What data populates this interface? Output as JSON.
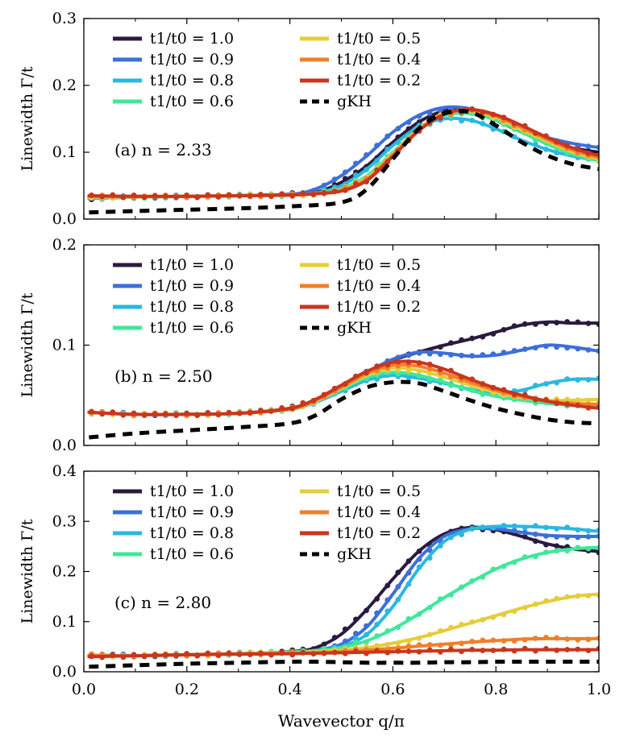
{
  "chart_data": [
    {
      "type": "line",
      "panel_label": "(a) n = 2.33",
      "ylabel": "Linewidth Γ/t",
      "xlabel": "",
      "xlim": [
        0,
        1
      ],
      "ylim": [
        0,
        0.3
      ],
      "xticks": [
        0.0,
        0.2,
        0.4,
        0.6,
        0.8,
        1.0
      ],
      "yticks": [
        0.0,
        0.1,
        0.2,
        0.3
      ],
      "show_xtick_labels": false,
      "series": [
        {
          "name": "t1/t0 = 1.0",
          "color": "#2b1a3f",
          "x": [
            0.01,
            0.1,
            0.2,
            0.3,
            0.4,
            0.45,
            0.5,
            0.55,
            0.6,
            0.65,
            0.7,
            0.75,
            0.8,
            0.85,
            0.9,
            0.95,
            1.0
          ],
          "y": [
            0.031,
            0.033,
            0.034,
            0.035,
            0.037,
            0.04,
            0.055,
            0.08,
            0.115,
            0.145,
            0.162,
            0.163,
            0.148,
            0.13,
            0.115,
            0.106,
            0.1
          ]
        },
        {
          "name": "t1/t0 = 0.9",
          "color": "#3d6fd8",
          "x": [
            0.01,
            0.1,
            0.2,
            0.3,
            0.4,
            0.45,
            0.5,
            0.55,
            0.6,
            0.65,
            0.7,
            0.75,
            0.8,
            0.85,
            0.9,
            0.95,
            1.0
          ],
          "y": [
            0.031,
            0.033,
            0.034,
            0.035,
            0.037,
            0.045,
            0.065,
            0.095,
            0.13,
            0.155,
            0.167,
            0.165,
            0.152,
            0.135,
            0.122,
            0.113,
            0.107
          ]
        },
        {
          "name": "t1/t0 = 0.8",
          "color": "#2ab8e0",
          "x": [
            0.01,
            0.1,
            0.2,
            0.3,
            0.4,
            0.45,
            0.5,
            0.55,
            0.6,
            0.65,
            0.7,
            0.75,
            0.8,
            0.85,
            0.9,
            0.95,
            1.0
          ],
          "y": [
            0.031,
            0.033,
            0.034,
            0.035,
            0.036,
            0.039,
            0.05,
            0.075,
            0.11,
            0.138,
            0.15,
            0.148,
            0.135,
            0.118,
            0.104,
            0.094,
            0.088
          ]
        },
        {
          "name": "t1/t0 = 0.6",
          "color": "#3ee89a",
          "x": [
            0.01,
            0.1,
            0.2,
            0.3,
            0.4,
            0.45,
            0.5,
            0.55,
            0.6,
            0.65,
            0.7,
            0.75,
            0.8,
            0.85,
            0.9,
            0.95,
            1.0
          ],
          "y": [
            0.033,
            0.033,
            0.034,
            0.035,
            0.036,
            0.038,
            0.045,
            0.065,
            0.1,
            0.135,
            0.155,
            0.158,
            0.148,
            0.13,
            0.112,
            0.097,
            0.087
          ]
        },
        {
          "name": "t1/t0 = 0.5",
          "color": "#e6cc3a",
          "x": [
            0.01,
            0.1,
            0.2,
            0.3,
            0.4,
            0.45,
            0.5,
            0.55,
            0.6,
            0.65,
            0.7,
            0.75,
            0.8,
            0.85,
            0.9,
            0.95,
            1.0
          ],
          "y": [
            0.033,
            0.033,
            0.034,
            0.035,
            0.036,
            0.038,
            0.044,
            0.062,
            0.098,
            0.135,
            0.158,
            0.162,
            0.152,
            0.134,
            0.116,
            0.1,
            0.09
          ]
        },
        {
          "name": "t1/t0 = 0.4",
          "color": "#f07f2a",
          "x": [
            0.01,
            0.1,
            0.2,
            0.3,
            0.4,
            0.45,
            0.5,
            0.55,
            0.6,
            0.65,
            0.7,
            0.75,
            0.8,
            0.85,
            0.9,
            0.95,
            1.0
          ],
          "y": [
            0.034,
            0.034,
            0.034,
            0.035,
            0.036,
            0.038,
            0.043,
            0.06,
            0.096,
            0.133,
            0.157,
            0.163,
            0.154,
            0.137,
            0.119,
            0.103,
            0.092
          ]
        },
        {
          "name": "t1/t0 = 0.2",
          "color": "#c9361d",
          "x": [
            0.01,
            0.1,
            0.2,
            0.3,
            0.4,
            0.45,
            0.5,
            0.55,
            0.6,
            0.65,
            0.7,
            0.75,
            0.8,
            0.85,
            0.9,
            0.95,
            1.0
          ],
          "y": [
            0.035,
            0.034,
            0.034,
            0.035,
            0.036,
            0.038,
            0.042,
            0.058,
            0.094,
            0.132,
            0.157,
            0.164,
            0.156,
            0.14,
            0.122,
            0.106,
            0.095
          ]
        },
        {
          "name": "gKH",
          "color": "#000000",
          "dashed": true,
          "x": [
            0.01,
            0.1,
            0.2,
            0.3,
            0.4,
            0.5,
            0.55,
            0.6,
            0.65,
            0.7,
            0.75,
            0.8,
            0.85,
            0.9,
            0.95,
            1.0
          ],
          "y": [
            0.01,
            0.012,
            0.014,
            0.016,
            0.019,
            0.025,
            0.045,
            0.09,
            0.135,
            0.158,
            0.16,
            0.14,
            0.115,
            0.095,
            0.082,
            0.075
          ]
        }
      ]
    },
    {
      "type": "line",
      "panel_label": "(b) n = 2.50",
      "ylabel": "Linewidth Γ/t",
      "xlabel": "",
      "xlim": [
        0,
        1
      ],
      "ylim": [
        0,
        0.2
      ],
      "xticks": [
        0.0,
        0.2,
        0.4,
        0.6,
        0.8,
        1.0
      ],
      "yticks": [
        0.0,
        0.1,
        0.2
      ],
      "show_xtick_labels": false,
      "series": [
        {
          "name": "t1/t0 = 1.0",
          "color": "#2b1a3f",
          "x": [
            0.01,
            0.1,
            0.2,
            0.3,
            0.4,
            0.45,
            0.5,
            0.55,
            0.6,
            0.65,
            0.7,
            0.75,
            0.8,
            0.85,
            0.9,
            0.95,
            1.0
          ],
          "y": [
            0.033,
            0.031,
            0.031,
            0.032,
            0.037,
            0.045,
            0.058,
            0.073,
            0.085,
            0.093,
            0.1,
            0.106,
            0.113,
            0.12,
            0.123,
            0.122,
            0.122
          ]
        },
        {
          "name": "t1/t0 = 0.9",
          "color": "#3d6fd8",
          "x": [
            0.01,
            0.1,
            0.2,
            0.3,
            0.4,
            0.45,
            0.5,
            0.55,
            0.6,
            0.65,
            0.7,
            0.75,
            0.8,
            0.85,
            0.9,
            0.95,
            1.0
          ],
          "y": [
            0.033,
            0.031,
            0.031,
            0.032,
            0.037,
            0.045,
            0.058,
            0.073,
            0.086,
            0.093,
            0.092,
            0.089,
            0.09,
            0.095,
            0.1,
            0.098,
            0.094
          ]
        },
        {
          "name": "t1/t0 = 0.8",
          "color": "#2ab8e0",
          "x": [
            0.01,
            0.1,
            0.2,
            0.3,
            0.4,
            0.45,
            0.5,
            0.55,
            0.6,
            0.65,
            0.7,
            0.75,
            0.8,
            0.85,
            0.9,
            0.95,
            1.0
          ],
          "y": [
            0.033,
            0.031,
            0.031,
            0.032,
            0.036,
            0.043,
            0.054,
            0.065,
            0.07,
            0.067,
            0.062,
            0.056,
            0.052,
            0.055,
            0.062,
            0.066,
            0.066
          ]
        },
        {
          "name": "t1/t0 = 0.6",
          "color": "#3ee89a",
          "x": [
            0.01,
            0.1,
            0.2,
            0.3,
            0.4,
            0.45,
            0.5,
            0.55,
            0.6,
            0.65,
            0.7,
            0.75,
            0.8,
            0.85,
            0.9,
            0.95,
            1.0
          ],
          "y": [
            0.033,
            0.031,
            0.031,
            0.032,
            0.036,
            0.044,
            0.056,
            0.068,
            0.073,
            0.07,
            0.063,
            0.055,
            0.049,
            0.045,
            0.042,
            0.04,
            0.04
          ]
        },
        {
          "name": "t1/t0 = 0.5",
          "color": "#e6cc3a",
          "x": [
            0.01,
            0.1,
            0.2,
            0.3,
            0.4,
            0.45,
            0.5,
            0.55,
            0.6,
            0.65,
            0.7,
            0.75,
            0.8,
            0.85,
            0.9,
            0.95,
            1.0
          ],
          "y": [
            0.033,
            0.031,
            0.031,
            0.032,
            0.036,
            0.044,
            0.057,
            0.07,
            0.077,
            0.075,
            0.068,
            0.06,
            0.053,
            0.048,
            0.045,
            0.045,
            0.046
          ]
        },
        {
          "name": "t1/t0 = 0.4",
          "color": "#f07f2a",
          "x": [
            0.01,
            0.1,
            0.2,
            0.3,
            0.4,
            0.45,
            0.5,
            0.55,
            0.6,
            0.65,
            0.7,
            0.75,
            0.8,
            0.85,
            0.9,
            0.95,
            1.0
          ],
          "y": [
            0.033,
            0.031,
            0.031,
            0.032,
            0.036,
            0.045,
            0.058,
            0.072,
            0.08,
            0.079,
            0.072,
            0.063,
            0.055,
            0.049,
            0.044,
            0.042,
            0.041
          ]
        },
        {
          "name": "t1/t0 = 0.2",
          "color": "#c9361d",
          "x": [
            0.01,
            0.1,
            0.2,
            0.3,
            0.4,
            0.45,
            0.5,
            0.55,
            0.6,
            0.65,
            0.7,
            0.75,
            0.8,
            0.85,
            0.9,
            0.95,
            1.0
          ],
          "y": [
            0.033,
            0.031,
            0.031,
            0.032,
            0.037,
            0.046,
            0.06,
            0.074,
            0.083,
            0.083,
            0.076,
            0.066,
            0.057,
            0.05,
            0.044,
            0.04,
            0.037
          ]
        },
        {
          "name": "gKH",
          "color": "#000000",
          "dashed": true,
          "x": [
            0.01,
            0.1,
            0.2,
            0.3,
            0.4,
            0.45,
            0.5,
            0.55,
            0.6,
            0.65,
            0.7,
            0.75,
            0.8,
            0.85,
            0.9,
            0.95,
            1.0
          ],
          "y": [
            0.008,
            0.012,
            0.015,
            0.018,
            0.022,
            0.03,
            0.046,
            0.058,
            0.063,
            0.062,
            0.054,
            0.045,
            0.037,
            0.031,
            0.026,
            0.023,
            0.022
          ]
        }
      ]
    },
    {
      "type": "line",
      "panel_label": "(c) n = 2.80",
      "ylabel": "Linewidth Γ/t",
      "xlabel": "Wavevector q/π",
      "xlim": [
        0,
        1
      ],
      "ylim": [
        0,
        0.4
      ],
      "xticks": [
        0.0,
        0.2,
        0.4,
        0.6,
        0.8,
        1.0
      ],
      "yticks": [
        0.0,
        0.1,
        0.2,
        0.3,
        0.4
      ],
      "show_xtick_labels": true,
      "series": [
        {
          "name": "t1/t0 = 1.0",
          "color": "#2b1a3f",
          "x": [
            0.01,
            0.1,
            0.2,
            0.3,
            0.4,
            0.45,
            0.5,
            0.55,
            0.6,
            0.65,
            0.7,
            0.75,
            0.8,
            0.85,
            0.9,
            0.95,
            1.0
          ],
          "y": [
            0.033,
            0.032,
            0.034,
            0.036,
            0.04,
            0.048,
            0.075,
            0.125,
            0.185,
            0.24,
            0.275,
            0.288,
            0.283,
            0.27,
            0.255,
            0.245,
            0.24
          ]
        },
        {
          "name": "t1/t0 = 0.9",
          "color": "#3d6fd8",
          "x": [
            0.01,
            0.1,
            0.2,
            0.3,
            0.4,
            0.45,
            0.5,
            0.55,
            0.6,
            0.65,
            0.7,
            0.75,
            0.8,
            0.85,
            0.9,
            0.95,
            1.0
          ],
          "y": [
            0.033,
            0.032,
            0.034,
            0.036,
            0.039,
            0.043,
            0.055,
            0.09,
            0.155,
            0.225,
            0.27,
            0.285,
            0.285,
            0.278,
            0.272,
            0.27,
            0.27
          ]
        },
        {
          "name": "t1/t0 = 0.8",
          "color": "#2ab8e0",
          "x": [
            0.01,
            0.1,
            0.2,
            0.3,
            0.4,
            0.45,
            0.5,
            0.55,
            0.6,
            0.65,
            0.7,
            0.75,
            0.8,
            0.85,
            0.9,
            0.95,
            1.0
          ],
          "y": [
            0.033,
            0.032,
            0.034,
            0.036,
            0.039,
            0.042,
            0.05,
            0.075,
            0.13,
            0.205,
            0.26,
            0.284,
            0.29,
            0.29,
            0.288,
            0.285,
            0.28
          ]
        },
        {
          "name": "t1/t0 = 0.6",
          "color": "#3ee89a",
          "x": [
            0.01,
            0.1,
            0.2,
            0.3,
            0.4,
            0.45,
            0.5,
            0.55,
            0.6,
            0.65,
            0.7,
            0.75,
            0.8,
            0.85,
            0.9,
            0.95,
            1.0
          ],
          "y": [
            0.033,
            0.032,
            0.034,
            0.036,
            0.039,
            0.042,
            0.048,
            0.062,
            0.085,
            0.115,
            0.148,
            0.178,
            0.205,
            0.225,
            0.238,
            0.245,
            0.248
          ]
        },
        {
          "name": "t1/t0 = 0.5",
          "color": "#e6cc3a",
          "x": [
            0.01,
            0.1,
            0.2,
            0.3,
            0.4,
            0.45,
            0.5,
            0.55,
            0.6,
            0.65,
            0.7,
            0.75,
            0.8,
            0.85,
            0.9,
            0.95,
            1.0
          ],
          "y": [
            0.033,
            0.032,
            0.034,
            0.036,
            0.038,
            0.04,
            0.043,
            0.048,
            0.057,
            0.068,
            0.082,
            0.097,
            0.112,
            0.127,
            0.14,
            0.15,
            0.155
          ]
        },
        {
          "name": "t1/t0 = 0.4",
          "color": "#f07f2a",
          "x": [
            0.01,
            0.1,
            0.2,
            0.3,
            0.4,
            0.45,
            0.5,
            0.55,
            0.6,
            0.65,
            0.7,
            0.75,
            0.8,
            0.85,
            0.9,
            0.95,
            1.0
          ],
          "y": [
            0.033,
            0.032,
            0.034,
            0.036,
            0.037,
            0.038,
            0.04,
            0.043,
            0.047,
            0.051,
            0.055,
            0.059,
            0.062,
            0.065,
            0.066,
            0.066,
            0.066
          ]
        },
        {
          "name": "t1/t0 = 0.2",
          "color": "#c9361d",
          "x": [
            0.01,
            0.1,
            0.2,
            0.3,
            0.4,
            0.45,
            0.5,
            0.55,
            0.6,
            0.65,
            0.7,
            0.75,
            0.8,
            0.85,
            0.9,
            0.95,
            1.0
          ],
          "y": [
            0.03,
            0.032,
            0.034,
            0.035,
            0.036,
            0.037,
            0.038,
            0.039,
            0.04,
            0.041,
            0.042,
            0.043,
            0.043,
            0.044,
            0.044,
            0.044,
            0.044
          ]
        },
        {
          "name": "gKH",
          "color": "#000000",
          "dashed": true,
          "x": [
            0.01,
            0.1,
            0.2,
            0.3,
            0.4,
            0.45,
            0.5,
            0.55,
            0.6,
            0.65,
            0.7,
            0.75,
            0.8,
            0.85,
            0.9,
            0.95,
            1.0
          ],
          "y": [
            0.01,
            0.013,
            0.016,
            0.018,
            0.02,
            0.02,
            0.019,
            0.018,
            0.018,
            0.018,
            0.019,
            0.019,
            0.02,
            0.02,
            0.02,
            0.02,
            0.02
          ]
        }
      ]
    }
  ]
}
